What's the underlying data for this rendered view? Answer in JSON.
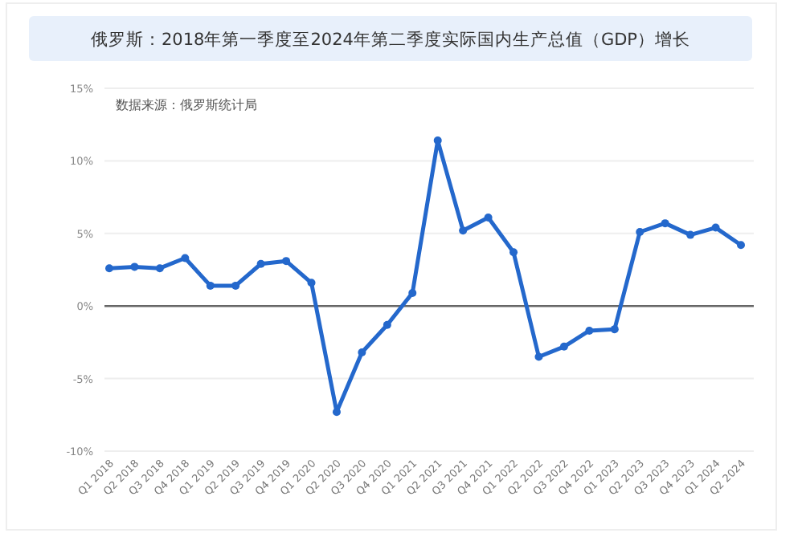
{
  "chart_data": {
    "type": "line",
    "title": "俄罗斯：2018年第一季度至2024年第二季度实际国内生产总值（GDP）增长",
    "categories": [
      "Q1 2018",
      "Q2 2018",
      "Q3 2018",
      "Q4 2018",
      "Q1 2019",
      "Q2 2019",
      "Q3 2019",
      "Q4 2019",
      "Q1 2020",
      "Q2 2020",
      "Q3 2020",
      "Q4 2020",
      "Q1 2021",
      "Q2 2021",
      "Q3 2021",
      "Q4 2021",
      "Q1 2022",
      "Q2 2022",
      "Q3 2022",
      "Q4 2022",
      "Q1 2023",
      "Q2 2023",
      "Q3 2023",
      "Q4 2023",
      "Q1 2024",
      "Q2 2024"
    ],
    "series": [
      {
        "color": "#2468cc",
        "values": [
          2.6,
          2.7,
          2.6,
          3.3,
          1.4,
          1.4,
          2.9,
          3.1,
          1.6,
          -7.3,
          -3.2,
          -1.3,
          0.9,
          11.4,
          5.2,
          6.1,
          3.7,
          -3.5,
          -2.8,
          -1.7,
          -1.6,
          5.1,
          5.7,
          4.9,
          5.4,
          4.2
        ]
      }
    ],
    "ylim": [
      -10,
      15
    ],
    "yticks": [
      {
        "value": -10,
        "label": "-10%"
      },
      {
        "value": -5,
        "label": "-5%"
      },
      {
        "value": 0,
        "label": "0%"
      },
      {
        "value": 5,
        "label": "5%"
      },
      {
        "value": 10,
        "label": "10%"
      },
      {
        "value": 15,
        "label": "15%"
      }
    ],
    "grid": "y",
    "marker": "circle",
    "line_style": "solid",
    "ref_lines": [
      {
        "axis": "y",
        "value": 0,
        "color": "#666666"
      }
    ],
    "annotations": [
      "数据来源：俄罗斯统计局"
    ]
  }
}
